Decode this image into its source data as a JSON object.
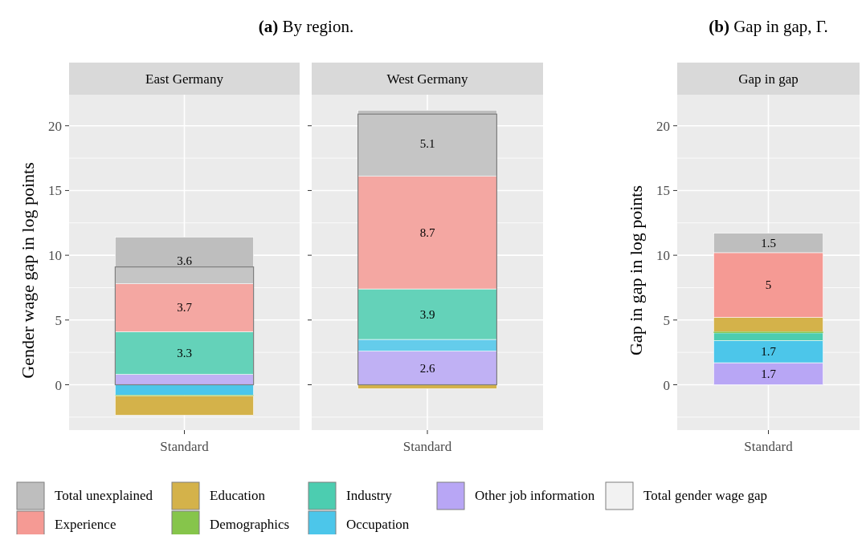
{
  "chart_data": [
    {
      "type": "bar",
      "title": "(a) By region.",
      "subtitle": "East Germany",
      "ylabel": "Gender wage gap in log points",
      "categories": [
        "Standard"
      ],
      "ylim": [
        -3.5,
        22.4
      ],
      "yticks": [
        0,
        5,
        10,
        15,
        20
      ],
      "grid": true,
      "legend": "bottom",
      "series": [
        {
          "name": "Other job information",
          "color": "#b8a6f5",
          "values": [
            0.8
          ],
          "base": [
            0
          ]
        },
        {
          "name": "Occupation",
          "color": "#4cc6ea",
          "values": [
            -0.8
          ],
          "base": [
            0
          ]
        },
        {
          "name": "Industry",
          "color": "#4ccdb0",
          "values": [
            3.3
          ],
          "base": [
            0.8
          ],
          "value_labels": [
            "3.3"
          ]
        },
        {
          "name": "Demographics",
          "color": "#86c54b",
          "values": [
            -0.05
          ],
          "base": [
            -0.8
          ]
        },
        {
          "name": "Education",
          "color": "#d4b24a",
          "values": [
            -1.5
          ],
          "base": [
            -0.85
          ]
        },
        {
          "name": "Experience",
          "color": "#f59a94",
          "values": [
            3.7
          ],
          "base": [
            4.1
          ],
          "value_labels": [
            "3.7"
          ]
        },
        {
          "name": "Total unexplained",
          "color": "#bebebe",
          "values": [
            3.6
          ],
          "base": [
            7.8
          ],
          "value_labels": [
            "3.6"
          ]
        },
        {
          "name": "Total gender wage gap",
          "color": "#f2f2f2",
          "values": [
            9.1
          ],
          "base": [
            0
          ]
        }
      ]
    },
    {
      "type": "bar",
      "subtitle": "West Germany",
      "categories": [
        "Standard"
      ],
      "ylim": [
        -3.5,
        22.4
      ],
      "yticks": [
        0,
        5,
        10,
        15,
        20
      ],
      "grid": true,
      "tick_labels": "x",
      "series": [
        {
          "color": "#b8a6f5",
          "values": [
            2.6
          ],
          "base": [
            0
          ],
          "value_labels": [
            "2.6"
          ]
        },
        {
          "color": "#4cc6ea",
          "values": [
            0.9
          ],
          "base": [
            2.6
          ]
        },
        {
          "color": "#4ccdb0",
          "values": [
            3.9
          ],
          "base": [
            3.5
          ],
          "value_labels": [
            "3.9"
          ]
        },
        {
          "color": "#d4b24a",
          "values": [
            -0.3
          ],
          "base": [
            0
          ]
        },
        {
          "color": "#f59a94",
          "values": [
            8.7
          ],
          "base": [
            7.4
          ],
          "value_labels": [
            "8.7"
          ]
        },
        {
          "color": "#bebebe",
          "values": [
            5.1
          ],
          "base": [
            16.1
          ],
          "value_labels": [
            "5.1"
          ]
        },
        {
          "color": "#f2f2f2",
          "values": [
            20.9
          ],
          "base": [
            0
          ]
        }
      ]
    },
    {
      "type": "bar",
      "title": "(b) Gap in gap, Γ.",
      "subtitle": "Gap in gap",
      "ylabel": "Gap in gap in log points",
      "categories": [
        "Standard"
      ],
      "ylim": [
        -3.5,
        22.4
      ],
      "yticks": [
        0,
        5,
        10,
        15,
        20
      ],
      "grid": true,
      "series": [
        {
          "color": "#b8a6f5",
          "values": [
            1.7
          ],
          "base": [
            0
          ],
          "value_labels": [
            "1.7"
          ]
        },
        {
          "color": "#4cc6ea",
          "values": [
            1.7
          ],
          "base": [
            1.7
          ],
          "value_labels": [
            "1.7"
          ]
        },
        {
          "color": "#4ccdb0",
          "values": [
            0.6
          ],
          "base": [
            3.4
          ]
        },
        {
          "color": "#86c54b",
          "values": [
            0.1
          ],
          "base": [
            4.0
          ]
        },
        {
          "color": "#d4b24a",
          "values": [
            1.1
          ],
          "base": [
            4.1
          ]
        },
        {
          "color": "#f59a94",
          "values": [
            5
          ],
          "base": [
            5.2
          ],
          "value_labels": [
            "5"
          ]
        },
        {
          "color": "#bebebe",
          "values": [
            1.5
          ],
          "base": [
            10.2
          ],
          "value_labels": [
            "1.5"
          ]
        }
      ]
    }
  ]
}
